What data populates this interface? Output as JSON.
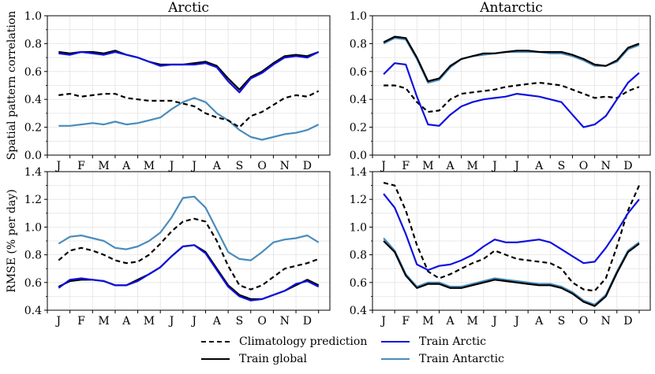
{
  "chart_data": [
    {
      "type": "line",
      "title": "Arctic",
      "ylabel": "Spatial pattern correlation",
      "xlabel": "",
      "ylim": [
        0.0,
        1.0
      ],
      "yticks": [
        "0.0",
        "0.2",
        "0.4",
        "0.6",
        "0.8",
        "1.0"
      ],
      "xticks": [
        "J",
        "F",
        "M",
        "A",
        "M",
        "J",
        "J",
        "A",
        "S",
        "O",
        "N",
        "D"
      ],
      "grid": true,
      "x": [
        0.5,
        1.0,
        1.5,
        2.0,
        2.5,
        3.0,
        3.5,
        4.0,
        4.5,
        5.0,
        5.5,
        6.0,
        6.5,
        7.0,
        7.5,
        8.0,
        8.5,
        9.0,
        9.5,
        10.0,
        10.5,
        11.0,
        11.5,
        12.0
      ],
      "series": [
        {
          "name": "Climatology prediction",
          "values": [
            0.43,
            0.44,
            0.42,
            0.43,
            0.44,
            0.44,
            0.41,
            0.4,
            0.39,
            0.39,
            0.39,
            0.37,
            0.35,
            0.3,
            0.27,
            0.25,
            0.2,
            0.28,
            0.31,
            0.36,
            0.41,
            0.43,
            0.42,
            0.46
          ]
        },
        {
          "name": "Train global",
          "values": [
            0.74,
            0.73,
            0.74,
            0.74,
            0.73,
            0.75,
            0.72,
            0.7,
            0.67,
            0.65,
            0.65,
            0.65,
            0.66,
            0.67,
            0.64,
            0.55,
            0.47,
            0.56,
            0.6,
            0.66,
            0.71,
            0.72,
            0.71,
            0.74
          ]
        },
        {
          "name": "Train Arctic",
          "values": [
            0.73,
            0.72,
            0.74,
            0.73,
            0.72,
            0.74,
            0.72,
            0.7,
            0.67,
            0.64,
            0.65,
            0.65,
            0.65,
            0.66,
            0.63,
            0.53,
            0.45,
            0.55,
            0.59,
            0.65,
            0.7,
            0.71,
            0.7,
            0.74
          ]
        },
        {
          "name": "Train Antarctic",
          "values": [
            0.21,
            0.21,
            0.22,
            0.23,
            0.22,
            0.24,
            0.22,
            0.23,
            0.25,
            0.27,
            0.33,
            0.38,
            0.41,
            0.38,
            0.3,
            0.25,
            0.18,
            0.13,
            0.11,
            0.13,
            0.15,
            0.16,
            0.18,
            0.22
          ]
        }
      ]
    },
    {
      "type": "line",
      "title": "Antarctic",
      "ylabel": "",
      "xlabel": "",
      "ylim": [
        0.0,
        1.0
      ],
      "yticks": [
        "0.0",
        "0.2",
        "0.4",
        "0.6",
        "0.8",
        "1.0"
      ],
      "xticks": [
        "J",
        "F",
        "M",
        "A",
        "M",
        "J",
        "J",
        "A",
        "S",
        "O",
        "N",
        "D"
      ],
      "grid": true,
      "x": [
        0.5,
        1.0,
        1.5,
        2.0,
        2.5,
        3.0,
        3.5,
        4.0,
        4.5,
        5.0,
        5.5,
        6.0,
        6.5,
        7.0,
        7.5,
        8.0,
        8.5,
        9.0,
        9.5,
        10.0,
        10.5,
        11.0,
        11.5,
        12.0
      ],
      "series": [
        {
          "name": "Climatology prediction",
          "values": [
            0.5,
            0.5,
            0.48,
            0.38,
            0.31,
            0.32,
            0.4,
            0.44,
            0.45,
            0.46,
            0.47,
            0.49,
            0.5,
            0.51,
            0.52,
            0.51,
            0.5,
            0.47,
            0.44,
            0.41,
            0.42,
            0.41,
            0.46,
            0.49
          ]
        },
        {
          "name": "Train global",
          "values": [
            0.81,
            0.85,
            0.84,
            0.7,
            0.53,
            0.55,
            0.64,
            0.69,
            0.71,
            0.73,
            0.73,
            0.74,
            0.75,
            0.75,
            0.74,
            0.74,
            0.74,
            0.72,
            0.69,
            0.65,
            0.64,
            0.68,
            0.77,
            0.8
          ]
        },
        {
          "name": "Train Arctic",
          "values": [
            0.58,
            0.66,
            0.65,
            0.42,
            0.22,
            0.21,
            0.29,
            0.35,
            0.38,
            0.4,
            0.41,
            0.42,
            0.44,
            0.43,
            0.42,
            0.4,
            0.38,
            0.29,
            0.2,
            0.22,
            0.28,
            0.4,
            0.52,
            0.59
          ]
        },
        {
          "name": "Train Antarctic",
          "values": [
            0.8,
            0.84,
            0.83,
            0.69,
            0.52,
            0.54,
            0.63,
            0.69,
            0.71,
            0.72,
            0.73,
            0.74,
            0.74,
            0.74,
            0.74,
            0.73,
            0.73,
            0.71,
            0.68,
            0.64,
            0.64,
            0.67,
            0.76,
            0.79
          ]
        }
      ]
    },
    {
      "type": "line",
      "title": "",
      "ylabel": "RMSE (% per day)",
      "xlabel": "",
      "ylim": [
        0.4,
        1.4
      ],
      "yticks": [
        "0.4",
        "0.6",
        "0.8",
        "1.0",
        "1.2",
        "1.4"
      ],
      "xticks": [
        "J",
        "F",
        "M",
        "A",
        "M",
        "J",
        "J",
        "A",
        "S",
        "O",
        "N",
        "D"
      ],
      "grid": true,
      "x": [
        0.5,
        1.0,
        1.5,
        2.0,
        2.5,
        3.0,
        3.5,
        4.0,
        4.5,
        5.0,
        5.5,
        6.0,
        6.5,
        7.0,
        7.5,
        8.0,
        8.5,
        9.0,
        9.5,
        10.0,
        10.5,
        11.0,
        11.5,
        12.0
      ],
      "series": [
        {
          "name": "Climatology prediction",
          "values": [
            0.76,
            0.83,
            0.85,
            0.83,
            0.8,
            0.76,
            0.74,
            0.75,
            0.8,
            0.88,
            0.97,
            1.04,
            1.06,
            1.04,
            0.9,
            0.72,
            0.58,
            0.55,
            0.58,
            0.64,
            0.7,
            0.72,
            0.74,
            0.77
          ]
        },
        {
          "name": "Train global",
          "values": [
            0.57,
            0.61,
            0.62,
            0.62,
            0.61,
            0.58,
            0.58,
            0.62,
            0.66,
            0.71,
            0.79,
            0.86,
            0.87,
            0.82,
            0.7,
            0.58,
            0.51,
            0.48,
            0.48,
            0.51,
            0.54,
            0.58,
            0.62,
            0.58
          ]
        },
        {
          "name": "Train Arctic",
          "values": [
            0.56,
            0.62,
            0.63,
            0.62,
            0.61,
            0.58,
            0.58,
            0.61,
            0.66,
            0.71,
            0.79,
            0.86,
            0.87,
            0.81,
            0.69,
            0.57,
            0.5,
            0.47,
            0.48,
            0.51,
            0.54,
            0.59,
            0.61,
            0.57
          ]
        },
        {
          "name": "Train Antarctic",
          "values": [
            0.88,
            0.93,
            0.94,
            0.92,
            0.9,
            0.85,
            0.84,
            0.86,
            0.9,
            0.96,
            1.07,
            1.21,
            1.22,
            1.14,
            0.98,
            0.82,
            0.77,
            0.76,
            0.82,
            0.89,
            0.91,
            0.92,
            0.94,
            0.89
          ]
        }
      ]
    },
    {
      "type": "line",
      "title": "",
      "ylabel": "",
      "xlabel": "",
      "ylim": [
        0.4,
        1.4
      ],
      "yticks": [
        "0.4",
        "0.6",
        "0.8",
        "1.0",
        "1.2",
        "1.4"
      ],
      "xticks": [
        "J",
        "F",
        "M",
        "A",
        "M",
        "J",
        "J",
        "A",
        "S",
        "O",
        "N",
        "D"
      ],
      "grid": true,
      "x": [
        0.5,
        1.0,
        1.5,
        2.0,
        2.5,
        3.0,
        3.5,
        4.0,
        4.5,
        5.0,
        5.5,
        6.0,
        6.5,
        7.0,
        7.5,
        8.0,
        8.5,
        9.0,
        9.5,
        10.0,
        10.5,
        11.0,
        11.5,
        12.0
      ],
      "series": [
        {
          "name": "Climatology prediction",
          "values": [
            1.32,
            1.3,
            1.12,
            0.87,
            0.68,
            0.63,
            0.66,
            0.7,
            0.74,
            0.77,
            0.83,
            0.8,
            0.77,
            0.76,
            0.75,
            0.74,
            0.7,
            0.6,
            0.55,
            0.54,
            0.63,
            0.86,
            1.12,
            1.3
          ]
        },
        {
          "name": "Train global",
          "values": [
            0.9,
            0.82,
            0.65,
            0.56,
            0.59,
            0.59,
            0.56,
            0.56,
            0.58,
            0.6,
            0.62,
            0.61,
            0.6,
            0.59,
            0.58,
            0.58,
            0.56,
            0.52,
            0.46,
            0.43,
            0.5,
            0.67,
            0.82,
            0.88
          ]
        },
        {
          "name": "Train Arctic",
          "values": [
            1.24,
            1.14,
            0.95,
            0.73,
            0.69,
            0.72,
            0.73,
            0.76,
            0.8,
            0.86,
            0.91,
            0.89,
            0.89,
            0.9,
            0.91,
            0.89,
            0.84,
            0.79,
            0.74,
            0.75,
            0.85,
            0.97,
            1.1,
            1.2
          ]
        },
        {
          "name": "Train Antarctic",
          "values": [
            0.92,
            0.83,
            0.66,
            0.57,
            0.6,
            0.6,
            0.57,
            0.57,
            0.59,
            0.61,
            0.63,
            0.62,
            0.61,
            0.6,
            0.59,
            0.59,
            0.57,
            0.53,
            0.47,
            0.44,
            0.51,
            0.68,
            0.83,
            0.89
          ]
        }
      ]
    }
  ],
  "styles": {
    "Climatology prediction": {
      "color": "#000000",
      "dash": "6,4"
    },
    "Train global": {
      "color": "#000000",
      "dash": ""
    },
    "Train Arctic": {
      "color": "#1010e0",
      "dash": ""
    },
    "Train Antarctic": {
      "color": "#4a8cbc",
      "dash": ""
    }
  },
  "legend": {
    "items": [
      {
        "label": "Climatology prediction"
      },
      {
        "label": "Train global"
      },
      {
        "label": "Train Arctic"
      },
      {
        "label": "Train Antarctic"
      }
    ]
  }
}
